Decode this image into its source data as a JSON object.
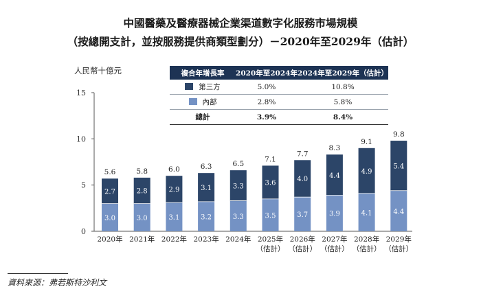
{
  "title_line1": "中國醫藥及醫療器械企業渠道數字化服務市場規模",
  "title_line2": "（按總開支計，並按服務提供商類型劃分）－2020年至2029年（估計）",
  "y_unit": "人民幣十億元",
  "source": "資料來源：弗若斯特沙利文",
  "colors": {
    "third_party": "#2c4568",
    "internal": "#7492c4",
    "header": "#1d3354"
  },
  "cagr_table": {
    "headers": [
      "複合年增長率",
      "2020年至2024年",
      "2024年至2029年（估計）"
    ],
    "rows": [
      {
        "label": "第三方",
        "a": "5.0%",
        "b": "10.8%"
      },
      {
        "label": "內部",
        "a": "2.8%",
        "b": "5.8%"
      },
      {
        "label": "總計",
        "a": "3.9%",
        "b": "8.4%"
      }
    ]
  },
  "chart_data": {
    "type": "bar",
    "stacked": true,
    "categories": [
      [
        "2020年"
      ],
      [
        "2021年"
      ],
      [
        "2022年"
      ],
      [
        "2023年"
      ],
      [
        "2024年"
      ],
      [
        "2025年",
        "（估計）"
      ],
      [
        "2026年",
        "（估計）"
      ],
      [
        "2027年",
        "（估計）"
      ],
      [
        "2028年",
        "（估計）"
      ],
      [
        "2029年",
        "（估計）"
      ]
    ],
    "series": [
      {
        "name": "內部",
        "values": [
          3.0,
          3.0,
          3.1,
          3.2,
          3.3,
          3.5,
          3.7,
          3.9,
          4.1,
          4.4
        ]
      },
      {
        "name": "第三方",
        "values": [
          2.7,
          2.8,
          2.9,
          3.1,
          3.3,
          3.6,
          4.0,
          4.4,
          4.9,
          5.4
        ]
      }
    ],
    "totals": [
      5.6,
      5.8,
      6.0,
      6.3,
      6.5,
      7.1,
      7.7,
      8.3,
      9.1,
      9.8
    ],
    "ylim": [
      0,
      15
    ],
    "yticks": [
      0,
      5,
      10,
      15
    ],
    "ylabel": "人民幣十億元",
    "legend": "table-top"
  }
}
